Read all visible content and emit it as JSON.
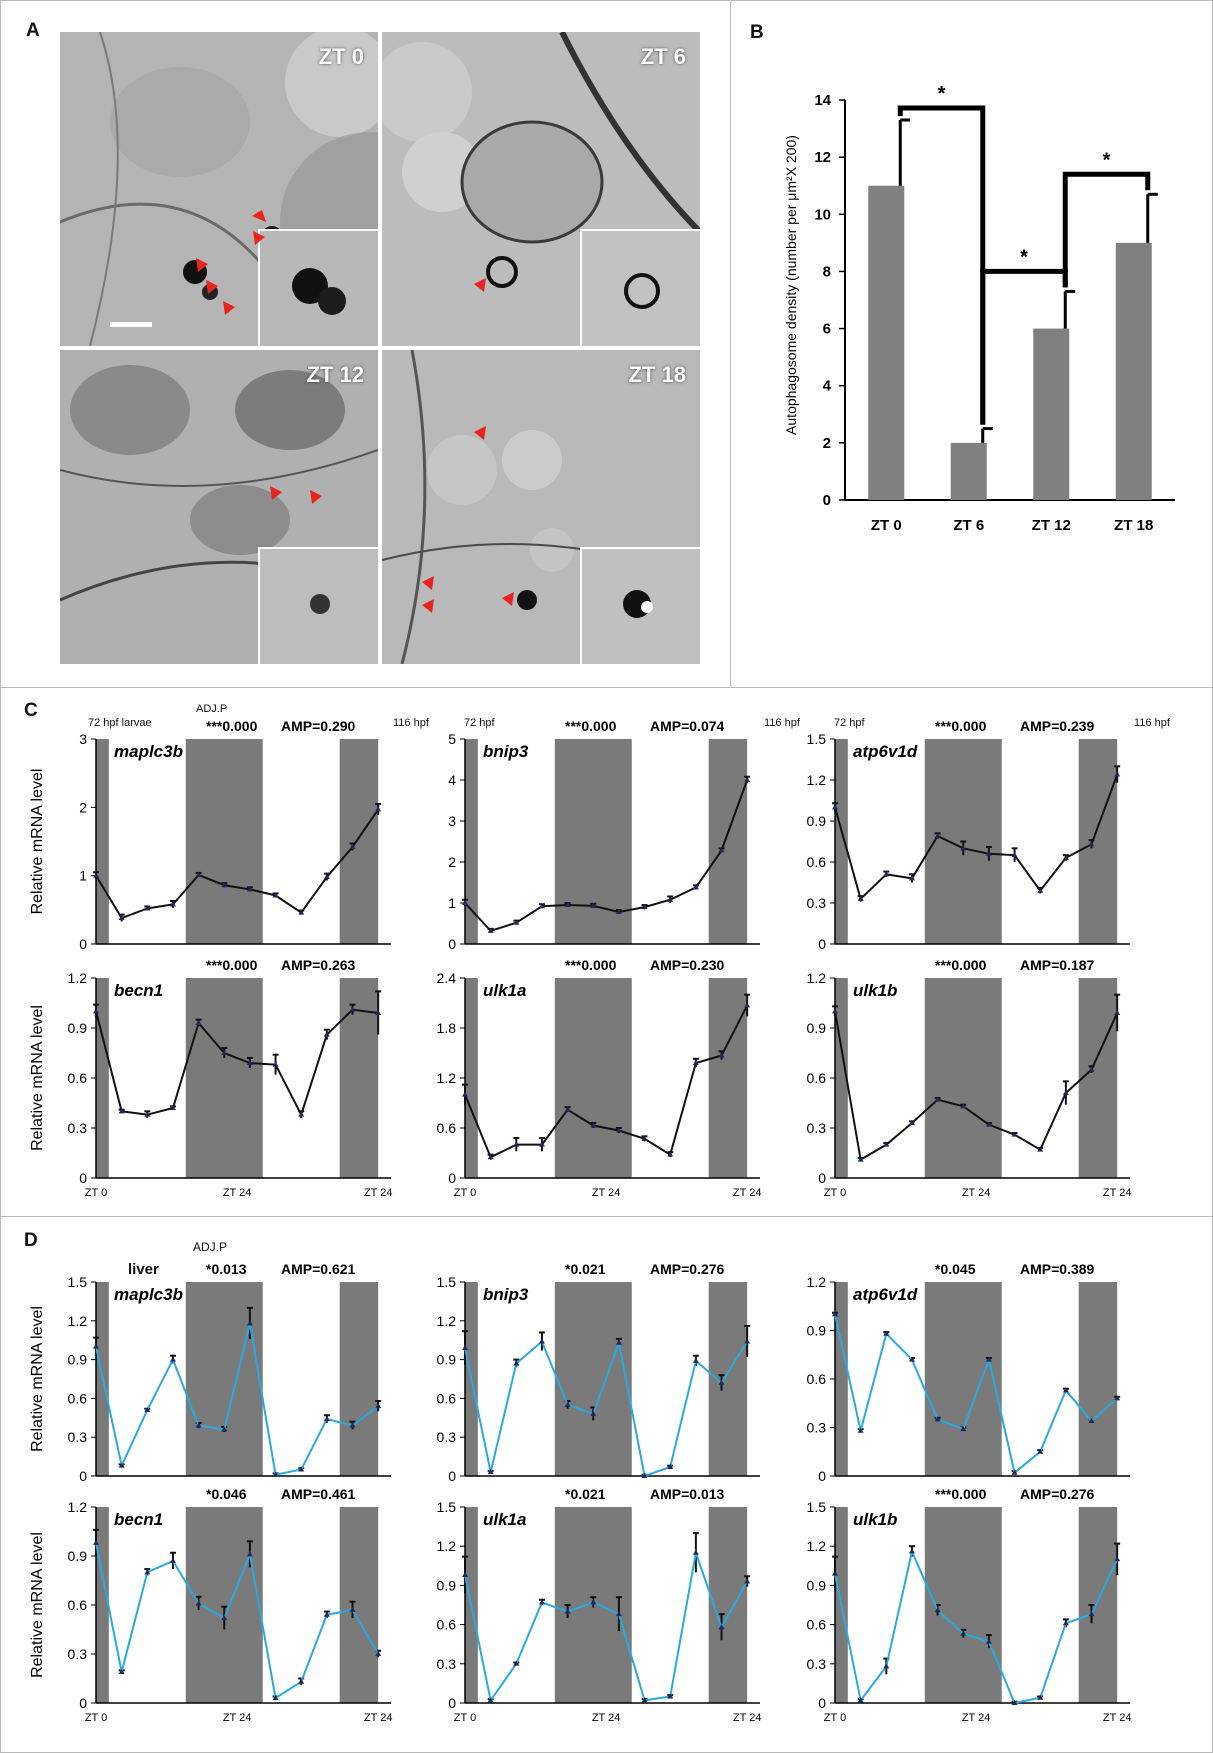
{
  "panel_labels": {
    "a": "A",
    "b": "B",
    "c": "C",
    "d": "D"
  },
  "em_images": [
    {
      "label": "ZT 0"
    },
    {
      "label": "ZT 6"
    },
    {
      "label": "ZT 12"
    },
    {
      "label": "ZT 18"
    }
  ],
  "colors": {
    "bar": "#808080",
    "shade": "#7a7a7a",
    "larvae_line": "#111111",
    "liver_line": "#29a9df",
    "arrow": "#e8241f",
    "marker": "#1d2a5a"
  },
  "panel_c_header": {
    "stage_start": "72 hpf",
    "stage_start_first": "72 hpf  larvae",
    "stage_end": "116 hpf",
    "adjp": "ADJ.P"
  },
  "panel_d_header": {
    "tissue": "liver",
    "adjp": "ADJ.P"
  },
  "x_tick_labels": [
    "ZT 0",
    "ZT 24",
    "ZT 24"
  ],
  "ylabel_mrna": "Relative mRNA level",
  "chart_data": [
    {
      "id": "B",
      "type": "bar",
      "categories": [
        "ZT 0",
        "ZT 6",
        "ZT 12",
        "ZT 18"
      ],
      "values": [
        11.0,
        2.0,
        6.0,
        9.0
      ],
      "errors": [
        2.3,
        0.5,
        1.3,
        1.7
      ],
      "ylabel": "Autophagosome density (number per μm²X 200)",
      "ylim": [
        0,
        14
      ],
      "yticks": [
        0,
        2,
        4,
        6,
        8,
        10,
        12,
        14
      ],
      "significance": [
        {
          "pair": [
            "ZT 0",
            "ZT 6"
          ],
          "label": "*"
        },
        {
          "pair": [
            "ZT 6",
            "ZT 12"
          ],
          "label": "*"
        },
        {
          "pair": [
            "ZT 12",
            "ZT 18"
          ],
          "label": "*"
        }
      ]
    },
    {
      "id": "C1",
      "type": "line",
      "gene": "maplc3b",
      "adjp": "***0.000",
      "amp": "AMP=0.290",
      "yticks": [
        "0",
        "1",
        "2",
        "3"
      ],
      "ylim": [
        0,
        3
      ],
      "x": [
        0,
        4,
        8,
        12,
        16,
        20,
        24,
        28,
        32,
        36,
        40,
        44
      ],
      "values": [
        1.0,
        0.38,
        0.52,
        0.58,
        1.01,
        0.86,
        0.8,
        0.71,
        0.46,
        0.98,
        1.42,
        1.97
      ],
      "errors": [
        0.05,
        0.05,
        0.03,
        0.05,
        0.03,
        0.03,
        0.03,
        0.03,
        0.03,
        0.05,
        0.05,
        0.08
      ]
    },
    {
      "id": "C2",
      "type": "line",
      "gene": "bnip3",
      "adjp": "***0.000",
      "amp": "AMP=0.074",
      "yticks": [
        "0",
        "1",
        "2",
        "3",
        "4",
        "5"
      ],
      "ylim": [
        0,
        5
      ],
      "x": [
        0,
        4,
        8,
        12,
        16,
        20,
        24,
        28,
        32,
        36,
        40,
        44
      ],
      "values": [
        1.0,
        0.32,
        0.52,
        0.92,
        0.95,
        0.93,
        0.78,
        0.9,
        1.08,
        1.38,
        2.28,
        4.0
      ],
      "errors": [
        0.08,
        0.05,
        0.05,
        0.05,
        0.05,
        0.05,
        0.05,
        0.05,
        0.08,
        0.05,
        0.05,
        0.08
      ]
    },
    {
      "id": "C3",
      "type": "line",
      "gene": "atp6v1d",
      "adjp": "***0.000",
      "amp": "AMP=0.239",
      "yticks": [
        "0",
        "0.3",
        "0.6",
        "0.9",
        "1.2",
        "1.5"
      ],
      "ylim": [
        0,
        1.5
      ],
      "x": [
        0,
        4,
        8,
        12,
        16,
        20,
        24,
        28,
        32,
        36,
        40,
        44
      ],
      "values": [
        1.0,
        0.33,
        0.51,
        0.48,
        0.79,
        0.7,
        0.66,
        0.65,
        0.39,
        0.63,
        0.73,
        1.24
      ],
      "errors": [
        0.03,
        0.02,
        0.02,
        0.03,
        0.02,
        0.05,
        0.05,
        0.05,
        0.02,
        0.02,
        0.03,
        0.06
      ]
    },
    {
      "id": "C4",
      "type": "line",
      "gene": "becn1",
      "adjp": "***0.000",
      "amp": "AMP=0.263",
      "yticks": [
        "0",
        "0.3",
        "0.6",
        "0.9",
        "1.2"
      ],
      "ylim": [
        0,
        1.2
      ],
      "x": [
        0,
        4,
        8,
        12,
        16,
        20,
        24,
        28,
        32,
        36,
        40,
        44
      ],
      "values": [
        1.0,
        0.4,
        0.38,
        0.42,
        0.93,
        0.75,
        0.69,
        0.68,
        0.38,
        0.86,
        1.01,
        0.99
      ],
      "errors": [
        0.04,
        0.01,
        0.02,
        0.01,
        0.02,
        0.03,
        0.03,
        0.06,
        0.02,
        0.03,
        0.03,
        0.13
      ]
    },
    {
      "id": "C5",
      "type": "line",
      "gene": "ulk1a",
      "adjp": "***0.000",
      "amp": "AMP=0.230",
      "yticks": [
        "0",
        "0.6",
        "1.2",
        "1.8",
        "2.4"
      ],
      "ylim": [
        0,
        2.4
      ],
      "x": [
        0,
        4,
        8,
        12,
        16,
        20,
        24,
        28,
        32,
        36,
        40,
        44
      ],
      "values": [
        1.0,
        0.25,
        0.4,
        0.4,
        0.82,
        0.63,
        0.57,
        0.47,
        0.28,
        1.38,
        1.47,
        2.07
      ],
      "errors": [
        0.12,
        0.03,
        0.08,
        0.08,
        0.03,
        0.03,
        0.03,
        0.03,
        0.03,
        0.05,
        0.05,
        0.13
      ]
    },
    {
      "id": "C6",
      "type": "line",
      "gene": "ulk1b",
      "adjp": "***0.000",
      "amp": "AMP=0.187",
      "yticks": [
        "0",
        "0.3",
        "0.6",
        "0.9",
        "1.2"
      ],
      "ylim": [
        0,
        1.2
      ],
      "x": [
        0,
        4,
        8,
        12,
        16,
        20,
        24,
        28,
        32,
        36,
        40,
        44
      ],
      "values": [
        1.0,
        0.11,
        0.2,
        0.33,
        0.47,
        0.43,
        0.32,
        0.26,
        0.17,
        0.51,
        0.65,
        0.99
      ],
      "errors": [
        0.03,
        0.01,
        0.01,
        0.01,
        0.01,
        0.01,
        0.01,
        0.01,
        0.01,
        0.07,
        0.02,
        0.11
      ]
    },
    {
      "id": "D1",
      "type": "line",
      "gene": "maplc3b",
      "adjp": "*0.013",
      "amp": "AMP=0.621",
      "yticks": [
        "0",
        "0.3",
        "0.6",
        "0.9",
        "1.2",
        "1.5"
      ],
      "ylim": [
        0,
        1.5
      ],
      "x": [
        0,
        4,
        8,
        12,
        16,
        20,
        24,
        28,
        32,
        36,
        40,
        44
      ],
      "values": [
        1.0,
        0.08,
        0.51,
        0.9,
        0.39,
        0.36,
        1.18,
        0.01,
        0.05,
        0.44,
        0.39,
        0.54
      ],
      "errors": [
        0.07,
        0.01,
        0.01,
        0.03,
        0.02,
        0.02,
        0.12,
        0.01,
        0.01,
        0.03,
        0.03,
        0.04
      ]
    },
    {
      "id": "D2",
      "type": "line",
      "gene": "bnip3",
      "adjp": "*0.021",
      "amp": "AMP=0.276",
      "yticks": [
        "0",
        "0.3",
        "0.6",
        "0.9",
        "1.2",
        "1.5"
      ],
      "ylim": [
        0,
        1.5
      ],
      "x": [
        0,
        4,
        8,
        12,
        16,
        20,
        24,
        28,
        32,
        36,
        40,
        44
      ],
      "values": [
        0.99,
        0.03,
        0.87,
        1.04,
        0.55,
        0.48,
        1.03,
        0.0,
        0.07,
        0.89,
        0.72,
        1.04
      ],
      "errors": [
        0.13,
        0.01,
        0.03,
        0.07,
        0.03,
        0.05,
        0.03,
        0.01,
        0.01,
        0.04,
        0.06,
        0.12
      ]
    },
    {
      "id": "D3",
      "type": "line",
      "gene": "atp6v1d",
      "adjp": "*0.045",
      "amp": "AMP=0.389",
      "yticks": [
        "0",
        "0.3",
        "0.6",
        "0.9",
        "1.2"
      ],
      "ylim": [
        0,
        1.2
      ],
      "x": [
        0,
        4,
        8,
        12,
        16,
        20,
        24,
        28,
        32,
        36,
        40,
        44
      ],
      "values": [
        1.0,
        0.28,
        0.88,
        0.72,
        0.35,
        0.29,
        0.72,
        0.02,
        0.15,
        0.53,
        0.34,
        0.48
      ],
      "errors": [
        0.01,
        0.01,
        0.01,
        0.01,
        0.01,
        0.01,
        0.01,
        0.01,
        0.01,
        0.01,
        0.01,
        0.01
      ]
    },
    {
      "id": "D4",
      "type": "line",
      "gene": "becn1",
      "adjp": "*0.046",
      "amp": "AMP=0.461",
      "yticks": [
        "0",
        "0.3",
        "0.6",
        "0.9",
        "1.2"
      ],
      "ylim": [
        0,
        1.2
      ],
      "x": [
        0,
        4,
        8,
        12,
        16,
        20,
        24,
        28,
        32,
        36,
        40,
        44
      ],
      "values": [
        0.98,
        0.19,
        0.8,
        0.87,
        0.61,
        0.52,
        0.91,
        0.03,
        0.13,
        0.54,
        0.57,
        0.3
      ],
      "errors": [
        0.08,
        0.01,
        0.02,
        0.05,
        0.04,
        0.07,
        0.08,
        0.01,
        0.02,
        0.02,
        0.05,
        0.02
      ]
    },
    {
      "id": "D5",
      "type": "line",
      "gene": "ulk1a",
      "adjp": "*0.021",
      "amp": "AMP=0.013",
      "yticks": [
        "0",
        "0.3",
        "0.6",
        "0.9",
        "1.2",
        "1.5"
      ],
      "ylim": [
        0,
        1.5
      ],
      "x": [
        0,
        4,
        8,
        12,
        16,
        20,
        24,
        28,
        32,
        36,
        40,
        44
      ],
      "values": [
        0.98,
        0.02,
        0.3,
        0.77,
        0.7,
        0.77,
        0.68,
        0.02,
        0.05,
        1.15,
        0.58,
        0.93
      ],
      "errors": [
        0.14,
        0.01,
        0.01,
        0.02,
        0.05,
        0.04,
        0.13,
        0.01,
        0.01,
        0.15,
        0.1,
        0.04
      ]
    },
    {
      "id": "D6",
      "type": "line",
      "gene": "ulk1b",
      "adjp": "***0.000",
      "amp": "AMP=0.276",
      "yticks": [
        "0",
        "0.3",
        "0.6",
        "0.9",
        "1.2",
        "1.5"
      ],
      "ylim": [
        0,
        1.5
      ],
      "x": [
        0,
        4,
        8,
        12,
        16,
        20,
        24,
        28,
        32,
        36,
        40,
        44
      ],
      "values": [
        0.99,
        0.02,
        0.28,
        1.16,
        0.71,
        0.53,
        0.47,
        0.0,
        0.04,
        0.61,
        0.68,
        1.1
      ],
      "errors": [
        0.13,
        0.01,
        0.06,
        0.04,
        0.04,
        0.03,
        0.05,
        0.01,
        0.01,
        0.03,
        0.07,
        0.12
      ]
    }
  ]
}
